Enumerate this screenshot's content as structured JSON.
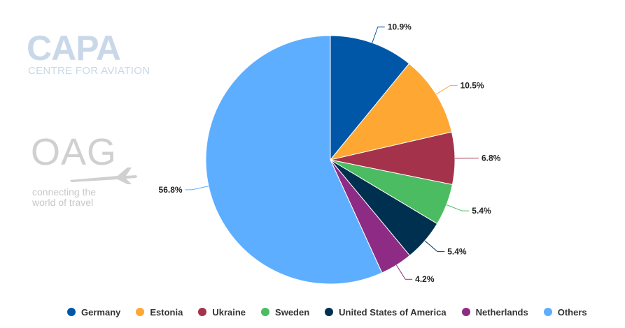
{
  "logos": {
    "capa": {
      "name": "CAPA",
      "tagline": "CENTRE FOR AVIATION"
    },
    "oag": {
      "name": "OAG",
      "tagline_line1": "connecting the",
      "tagline_line2": "world of travel",
      "icon": "airplane-icon"
    }
  },
  "chart_data": {
    "type": "pie",
    "title": "",
    "categories": [
      "Germany",
      "Estonia",
      "Ukraine",
      "Sweden",
      "United States of America",
      "Netherlands",
      "Others"
    ],
    "values": [
      10.9,
      10.5,
      6.8,
      5.4,
      5.4,
      4.2,
      56.8
    ],
    "value_labels": [
      "10.9%",
      "10.5%",
      "6.8%",
      "5.4%",
      "5.4%",
      "4.2%",
      "56.8%"
    ],
    "colors": [
      "#0057a8",
      "#ffa733",
      "#a3324a",
      "#4cbc62",
      "#00304f",
      "#8e2c85",
      "#5eaeff"
    ],
    "start_angle_deg": 0,
    "direction": "clockwise",
    "legend_position": "bottom"
  }
}
